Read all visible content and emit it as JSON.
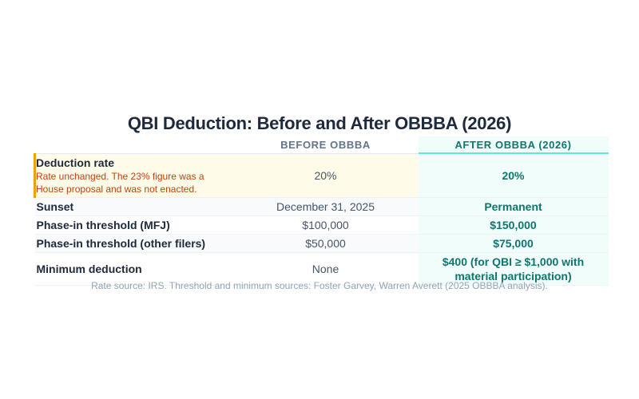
{
  "title": "QBI Deduction: Before and After OBBBA (2026)",
  "table": {
    "headers": [
      "BEFORE OBBBA",
      "AFTER OBBBA (2026)"
    ],
    "rows": [
      {
        "label": "Deduction rate",
        "note": "Rate unchanged. The 23% figure was a House proposal and was not enacted.",
        "before": "20%",
        "after": "20%"
      },
      {
        "label": "Sunset",
        "before": "December 31, 2025",
        "after": "Permanent"
      },
      {
        "label": "Phase-in threshold (MFJ)",
        "before": "$100,000",
        "after": "$150,000"
      },
      {
        "label": "Phase-in threshold (other filers)",
        "before": "$50,000",
        "after": "$75,000"
      },
      {
        "label": "Minimum deduction",
        "before": "None",
        "after": "$400 (for QBI ≥ $1,000 with material participation)"
      }
    ]
  },
  "source": "Rate source: IRS. Threshold and minimum sources: Foster Garvey, Warren Averett (2025 OBBBA analysis)."
}
